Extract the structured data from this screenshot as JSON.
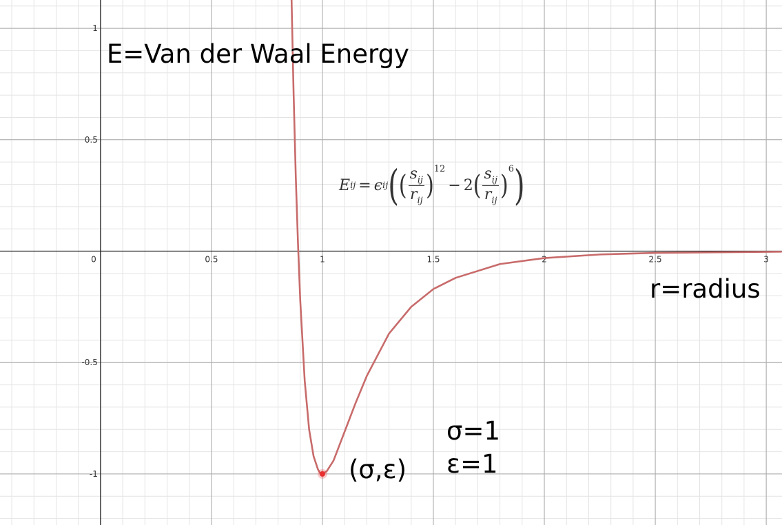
{
  "chart_data": {
    "type": "line",
    "title": "E=Van der Waal Energy",
    "x_label": "r=radius",
    "xlim": [
      -0.453,
      3.071
    ],
    "ylim": [
      -1.229,
      1.127
    ],
    "xticks": [
      0,
      0.5,
      1,
      1.5,
      2,
      2.5,
      3
    ],
    "yticks": [
      -1,
      -0.5,
      0.5,
      1
    ],
    "grid": true,
    "minor_grid": true,
    "series": [
      {
        "color": "#c86b6b",
        "x": [
          0.86,
          0.87,
          0.88,
          0.89,
          0.9,
          0.92,
          0.94,
          0.96,
          0.98,
          0.99,
          1,
          1.02,
          1.05,
          1.1,
          1.15,
          1.2,
          1.3,
          1.4,
          1.5,
          1.6,
          1.8,
          2,
          2.25,
          2.5,
          3.07
        ],
        "values": [
          1.17,
          0.71,
          0.33,
          0.03,
          -0.22,
          -0.58,
          -0.8,
          -0.92,
          -0.98,
          -0.996,
          -1,
          -0.987,
          -0.94,
          -0.81,
          -0.68,
          -0.56,
          -0.37,
          -0.25,
          -0.17,
          -0.12,
          -0.058,
          -0.031,
          -0.015,
          -0.008,
          -0.0024
        ]
      }
    ],
    "point": {
      "x": 1,
      "y": -1,
      "color": "#e83030",
      "label": "(σ,ε)"
    },
    "params": [
      "σ=1",
      "ε=1"
    ],
    "formula": {
      "lhs": "E",
      "lhs_sub": "ij",
      "eq": "=",
      "coef": "ϵ",
      "coef_sub": "ij",
      "num": "s",
      "num_sub": "ij",
      "den": "r",
      "den_sub": "ij",
      "exp1": "12",
      "minus": "−",
      "factor": "2",
      "exp2": "6"
    }
  }
}
